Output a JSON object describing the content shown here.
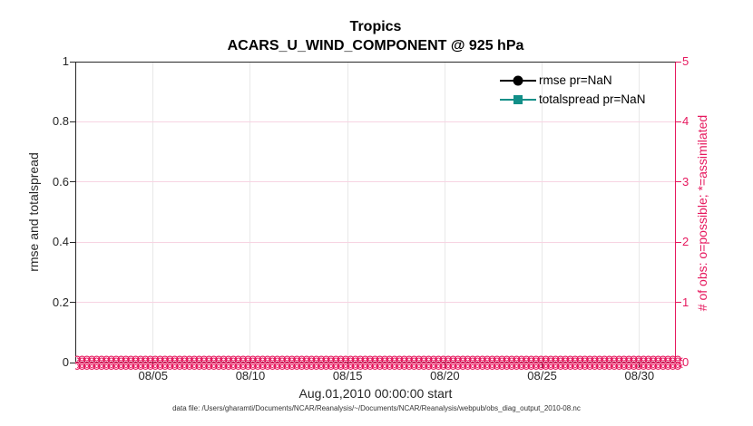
{
  "header": {
    "title": "Tropics",
    "subtitle": "ACARS_U_WIND_COMPONENT @ 925 hPa"
  },
  "axes": {
    "left": {
      "label": "rmse and totalspread",
      "tick_labels": [
        "0",
        "0.2",
        "0.4",
        "0.6",
        "0.8",
        "1"
      ],
      "tick_values": [
        0,
        0.2,
        0.4,
        0.6,
        0.8,
        1
      ],
      "range": [
        0,
        1
      ],
      "color": "#262626"
    },
    "right": {
      "label": "# of obs: o=possible; *=assimilated",
      "tick_labels": [
        "0",
        "1",
        "2",
        "3",
        "4",
        "5"
      ],
      "tick_values": [
        0,
        1,
        2,
        3,
        4,
        5
      ],
      "range": [
        0,
        5
      ],
      "color": "#e6185e"
    },
    "x": {
      "label": "Aug.01,2010 00:00:00 start",
      "tick_labels": [
        "08/05",
        "08/10",
        "08/15",
        "08/20",
        "08/25",
        "08/30"
      ],
      "tick_days": [
        5,
        10,
        15,
        20,
        25,
        30
      ],
      "range_days": [
        1,
        31.875
      ]
    }
  },
  "legend": {
    "items": [
      {
        "label": "rmse pr=NaN",
        "color": "#000000",
        "marker": "filled-circle"
      },
      {
        "label": "totalspread pr=NaN",
        "color": "#128f88",
        "marker": "filled-square"
      }
    ]
  },
  "obs_markers": {
    "color": "#e6185e",
    "rows": 2,
    "count_per_row": 124,
    "value": 0
  },
  "caption": "data file: /Users/gharamti/Documents/NCAR/Reanalysis/~/Documents/NCAR/Reanalysis/webpub/obs_diag_output_2010-08.nc",
  "chart_data": {
    "type": "line",
    "title": "Tropics",
    "subtitle": "ACARS_U_WIND_COMPONENT @ 925 hPa",
    "xlabel": "Aug.01,2010 00:00:00 start",
    "ylabel_left": "rmse and totalspread",
    "ylabel_right": "# of obs: o=possible; *=assimilated",
    "x_ticks": [
      "08/05",
      "08/10",
      "08/15",
      "08/20",
      "08/25",
      "08/30"
    ],
    "xlim_days_of_august_2010": [
      1,
      31.875
    ],
    "ylim_left": [
      0,
      1
    ],
    "ylim_right": [
      0,
      5
    ],
    "grid": true,
    "legend_position": "upper-right-inside, no box",
    "series": [
      {
        "name": "rmse pr=NaN",
        "axis": "left",
        "color": "#000000",
        "marker": "filled-circle",
        "values": "all NaN (no curve drawn)"
      },
      {
        "name": "totalspread pr=NaN",
        "axis": "left",
        "color": "#128f88",
        "marker": "filled-square",
        "values": "all NaN (no curve drawn)"
      },
      {
        "name": "possible observation count (o markers)",
        "axis": "right",
        "color": "#e6185e",
        "marker": "open-circle",
        "n_points": 124,
        "constant_value": 0
      },
      {
        "name": "assimilated observation count (* markers)",
        "axis": "right",
        "color": "#e6185e",
        "marker": "asterisk",
        "n_points": 124,
        "constant_value": 0
      }
    ]
  }
}
